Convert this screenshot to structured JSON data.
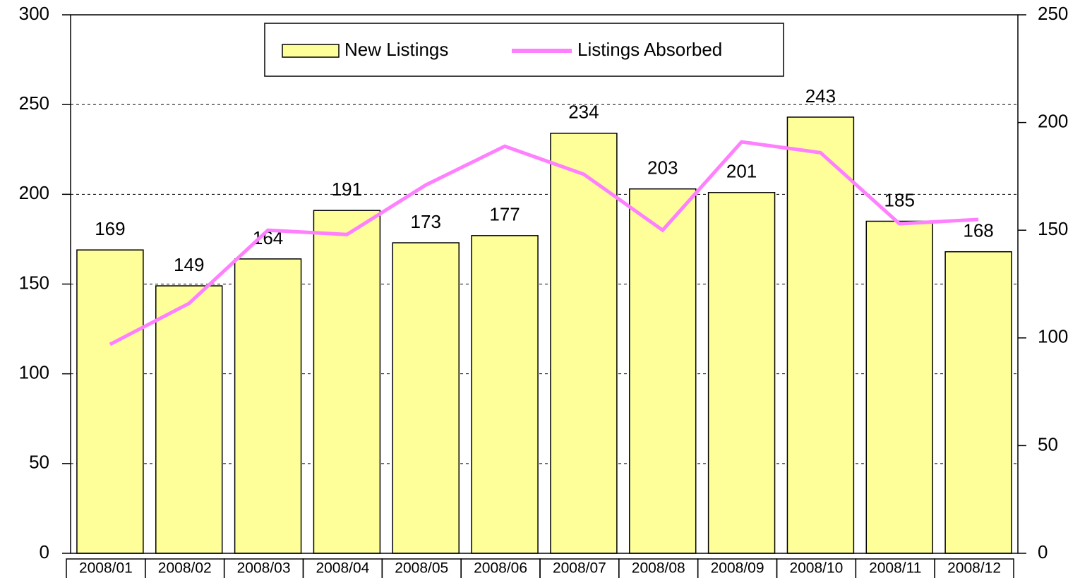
{
  "chart_data": {
    "type": "bar",
    "categories": [
      "2008/01",
      "2008/02",
      "2008/03",
      "2008/04",
      "2008/05",
      "2008/06",
      "2008/07",
      "2008/08",
      "2008/09",
      "2008/10",
      "2008/11",
      "2008/12"
    ],
    "series": [
      {
        "name": "New Listings",
        "type": "bar",
        "color": "#ffff99",
        "values": [
          169,
          149,
          164,
          191,
          173,
          177,
          234,
          203,
          201,
          243,
          185,
          168
        ]
      },
      {
        "name": "Listings Absorbed",
        "type": "line",
        "axis": "y2",
        "color": "#ff80ff",
        "values": [
          97,
          116,
          150,
          148,
          171,
          189,
          176,
          150,
          191,
          186,
          153,
          155
        ]
      }
    ],
    "ylim": [
      0,
      300
    ],
    "yticks": [
      0,
      50,
      100,
      150,
      200,
      250,
      300
    ],
    "y2lim": [
      0,
      250
    ],
    "y2ticks": [
      0,
      50,
      100,
      150,
      200,
      250
    ],
    "grid": true,
    "legend": "top"
  }
}
